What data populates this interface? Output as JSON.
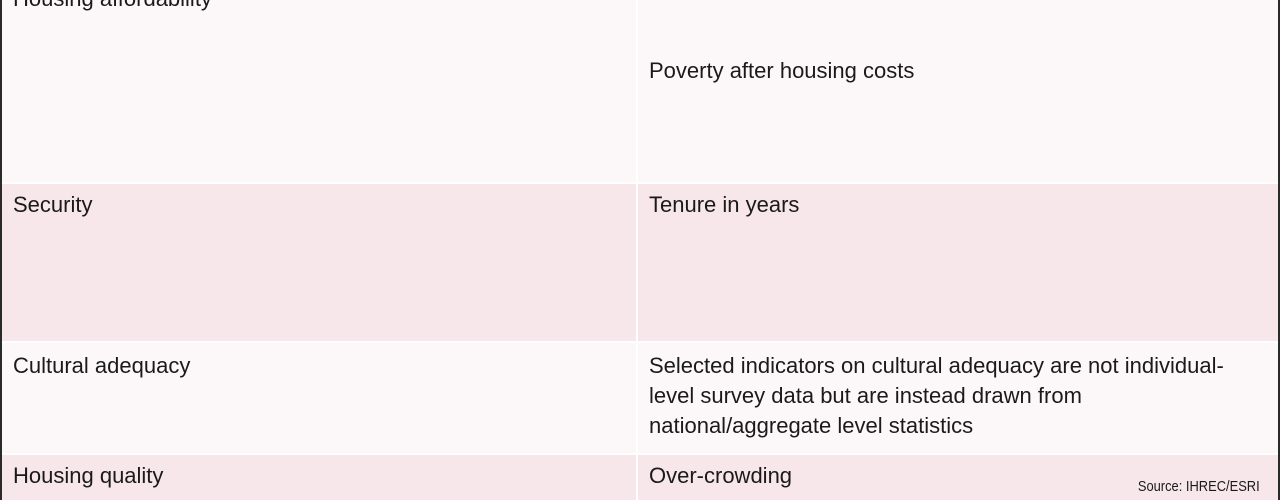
{
  "table": {
    "rows": [
      {
        "dimension": "Housing affordability",
        "indicator": "Poverty after housing costs"
      },
      {
        "dimension": "Security",
        "indicator": "Tenure in years"
      },
      {
        "dimension": "Cultural adequacy",
        "indicator": "Selected indicators on cultural adequacy are not individual-level survey data but are instead drawn from national/aggregate level statistics"
      },
      {
        "dimension": "Housing quality",
        "indicator": "Over-crowding"
      }
    ]
  },
  "source": "Source: IHREC/ESRI",
  "colors": {
    "row_light": "#fcf8f9",
    "row_pink": "#f8e7ea",
    "border": "#2a2a2a"
  }
}
